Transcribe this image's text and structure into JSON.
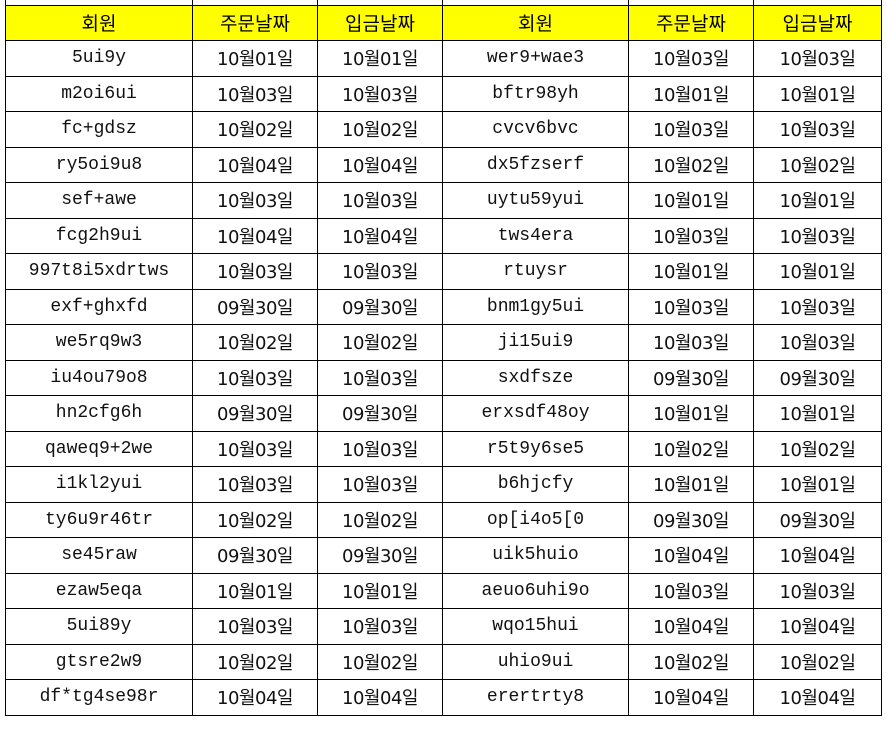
{
  "headers": [
    "회원",
    "주문날짜",
    "입금날짜",
    "회원",
    "주문날짜",
    "입금날짜"
  ],
  "header_color": "#ffff00",
  "rows": [
    [
      "5ui9y",
      "10월01일",
      "10월01일",
      "wer9+wae3",
      "10월03일",
      "10월03일"
    ],
    [
      "m2oi6ui",
      "10월03일",
      "10월03일",
      "bftr98yh",
      "10월01일",
      "10월01일"
    ],
    [
      "fc+gdsz",
      "10월02일",
      "10월02일",
      "cvcv6bvc",
      "10월03일",
      "10월03일"
    ],
    [
      "ry5oi9u8",
      "10월04일",
      "10월04일",
      "dx5fzserf",
      "10월02일",
      "10월02일"
    ],
    [
      "sef+awe",
      "10월03일",
      "10월03일",
      "uytu59yui",
      "10월01일",
      "10월01일"
    ],
    [
      "fcg2h9ui",
      "10월04일",
      "10월04일",
      "tws4era",
      "10월03일",
      "10월03일"
    ],
    [
      "997t8i5xdrtws",
      "10월03일",
      "10월03일",
      "rtuysr",
      "10월01일",
      "10월01일"
    ],
    [
      "exf+ghxfd",
      "09월30일",
      "09월30일",
      "bnm1gy5ui",
      "10월03일",
      "10월03일"
    ],
    [
      "we5rq9w3",
      "10월02일",
      "10월02일",
      "ji15ui9",
      "10월03일",
      "10월03일"
    ],
    [
      "iu4ou79o8",
      "10월03일",
      "10월03일",
      "sxdfsze",
      "09월30일",
      "09월30일"
    ],
    [
      "hn2cfg6h",
      "09월30일",
      "09월30일",
      "erxsdf48oy",
      "10월01일",
      "10월01일"
    ],
    [
      "qaweq9+2we",
      "10월03일",
      "10월03일",
      "r5t9y6se5",
      "10월02일",
      "10월02일"
    ],
    [
      "i1kl2yui",
      "10월03일",
      "10월03일",
      "b6hjcfy",
      "10월01일",
      "10월01일"
    ],
    [
      "ty6u9r46tr",
      "10월02일",
      "10월02일",
      "op[i4o5[0",
      "09월30일",
      "09월30일"
    ],
    [
      "se45raw",
      "09월30일",
      "09월30일",
      "uik5huio",
      "10월04일",
      "10월04일"
    ],
    [
      "ezaw5eqa",
      "10월01일",
      "10월01일",
      "aeuo6uhi9o",
      "10월03일",
      "10월03일"
    ],
    [
      "5ui89y",
      "10월03일",
      "10월03일",
      "wqo15hui",
      "10월04일",
      "10월04일"
    ],
    [
      "gtsre2w9",
      "10월02일",
      "10월02일",
      "uhio9ui",
      "10월02일",
      "10월02일"
    ],
    [
      "df*tg4se98r",
      "10월04일",
      "10월04일",
      "erertrty8",
      "10월04일",
      "10월04일"
    ]
  ]
}
